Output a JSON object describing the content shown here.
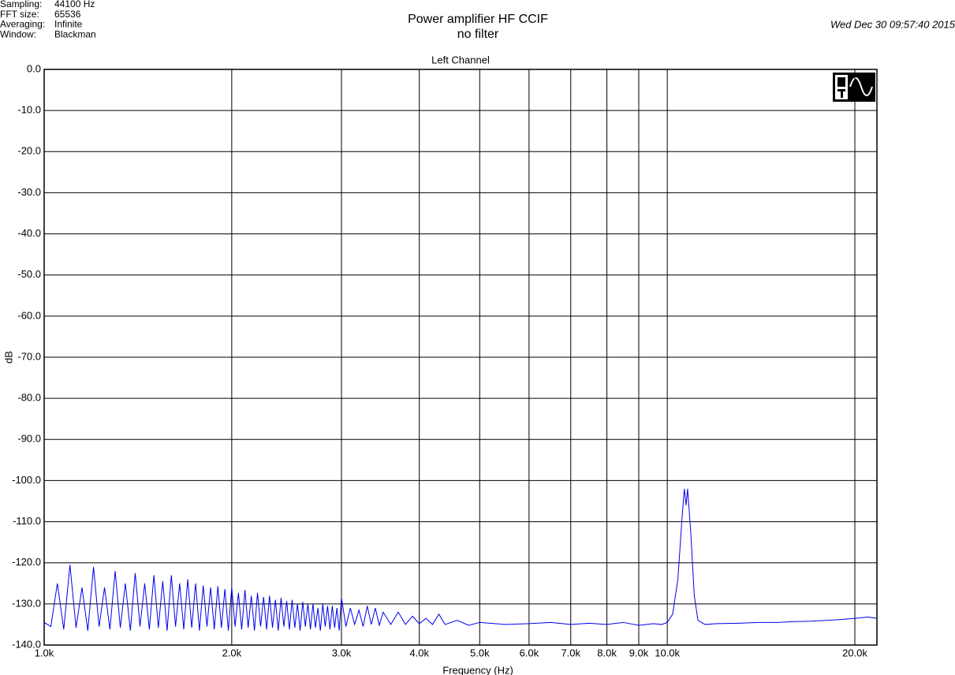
{
  "chart_data": {
    "type": "line",
    "title": "Power amplifier HF CCIF",
    "subtitle": "no filter",
    "plot_title": "Left Channel",
    "timestamp": "Wed Dec 30 09:57:40 2015",
    "info": [
      {
        "label": "Sampling:",
        "value": "44100 Hz"
      },
      {
        "label": "FFT size:",
        "value": "65536"
      },
      {
        "label": "Averaging:",
        "value": "Infinite"
      },
      {
        "label": "Window:",
        "value": "Blackman"
      }
    ],
    "x_label": "Frequency (Hz)",
    "y_label": "dB",
    "xscale": "log",
    "grid": true,
    "color": "#0000ee",
    "xlim": [
      1000,
      21700
    ],
    "ylim": [
      -140,
      0
    ],
    "xticks": [
      {
        "value": 1000,
        "label": "1.0k"
      },
      {
        "value": 2000,
        "label": "2.0k"
      },
      {
        "value": 3000,
        "label": "3.0k"
      },
      {
        "value": 4000,
        "label": "4.0k"
      },
      {
        "value": 5000,
        "label": "5.0k"
      },
      {
        "value": 6000,
        "label": "6.0k"
      },
      {
        "value": 7000,
        "label": "7.0k"
      },
      {
        "value": 8000,
        "label": "8.0k"
      },
      {
        "value": 9000,
        "label": "9.0k"
      },
      {
        "value": 10000,
        "label": "10.0k"
      },
      {
        "value": 20000,
        "label": "20.0k"
      }
    ],
    "yticks": [
      {
        "value": 0,
        "label": "0.0"
      },
      {
        "value": -10,
        "label": "-10.0"
      },
      {
        "value": -20,
        "label": "-20.0"
      },
      {
        "value": -30,
        "label": "-30.0"
      },
      {
        "value": -40,
        "label": "-40.0"
      },
      {
        "value": -50,
        "label": "-50.0"
      },
      {
        "value": -60,
        "label": "-60.0"
      },
      {
        "value": -70,
        "label": "-70.0"
      },
      {
        "value": -80,
        "label": "-80.0"
      },
      {
        "value": -90,
        "label": "-90.0"
      },
      {
        "value": -100,
        "label": "-100.0"
      },
      {
        "value": -110,
        "label": "-110.0"
      },
      {
        "value": -120,
        "label": "-120.0"
      },
      {
        "value": -130,
        "label": "-130.0"
      },
      {
        "value": -140,
        "label": "-140.0"
      }
    ],
    "x": [
      1000,
      1025,
      1050,
      1075,
      1100,
      1125,
      1150,
      1175,
      1200,
      1225,
      1250,
      1275,
      1300,
      1325,
      1350,
      1375,
      1400,
      1425,
      1450,
      1475,
      1500,
      1525,
      1550,
      1575,
      1600,
      1625,
      1650,
      1675,
      1700,
      1725,
      1750,
      1775,
      1800,
      1825,
      1850,
      1875,
      1900,
      1925,
      1950,
      1975,
      2000,
      2025,
      2050,
      2075,
      2100,
      2125,
      2150,
      2175,
      2200,
      2225,
      2250,
      2275,
      2300,
      2325,
      2350,
      2375,
      2400,
      2425,
      2450,
      2475,
      2500,
      2525,
      2550,
      2575,
      2600,
      2625,
      2650,
      2675,
      2700,
      2725,
      2750,
      2775,
      2800,
      2825,
      2850,
      2875,
      2900,
      2925,
      2950,
      2975,
      3000,
      3050,
      3100,
      3150,
      3200,
      3250,
      3300,
      3350,
      3400,
      3450,
      3500,
      3600,
      3700,
      3800,
      3900,
      4000,
      4100,
      4200,
      4300,
      4400,
      4600,
      4800,
      5000,
      5500,
      6000,
      6500,
      7000,
      7500,
      8000,
      8500,
      9000,
      9500,
      9800,
      10000,
      10200,
      10400,
      10550,
      10650,
      10720,
      10780,
      10900,
      11050,
      11200,
      11500,
      12000,
      13000,
      14000,
      15000,
      16000,
      17000,
      18000,
      19000,
      20000,
      21000,
      21700
    ],
    "values": [
      -134.5,
      -135.5,
      -125,
      -136.2,
      -120.5,
      -135.8,
      -126,
      -136.5,
      -121,
      -135.5,
      -126,
      -136.2,
      -122,
      -135.8,
      -125,
      -136.5,
      -122.5,
      -135.5,
      -125,
      -136.2,
      -123,
      -135.8,
      -124.5,
      -136.5,
      -123,
      -135.5,
      -125,
      -136.2,
      -124,
      -135.8,
      -125,
      -136.5,
      -125.5,
      -135.5,
      -126,
      -136.2,
      -125.7,
      -135.8,
      -126.4,
      -136.5,
      -126,
      -135.5,
      -127.3,
      -136.2,
      -126.6,
      -135.8,
      -128,
      -136.5,
      -127.3,
      -135.5,
      -128.3,
      -136.2,
      -128,
      -135.8,
      -129,
      -136.5,
      -128.5,
      -135.5,
      -129.3,
      -136.2,
      -129,
      -135.8,
      -130,
      -136.5,
      -129.5,
      -135.5,
      -130,
      -136.2,
      -130,
      -135.8,
      -131,
      -136.5,
      -130,
      -135.5,
      -130.5,
      -136.2,
      -130.5,
      -135.8,
      -131,
      -136.5,
      -128.5,
      -135.5,
      -131,
      -135,
      -131.5,
      -135.5,
      -130.5,
      -135,
      -131,
      -135.2,
      -132,
      -135,
      -132,
      -135,
      -133,
      -134.8,
      -133.5,
      -135,
      -132.5,
      -135,
      -134,
      -135.2,
      -134.5,
      -135,
      -134.8,
      -134.5,
      -135,
      -134.7,
      -135,
      -134.5,
      -135.2,
      -134.8,
      -135,
      -134.5,
      -132.5,
      -124,
      -110,
      -102,
      -106,
      -102,
      -112,
      -128,
      -134,
      -135,
      -134.8,
      -134.7,
      -134.5,
      -134.5,
      -134.3,
      -134.2,
      -134,
      -133.8,
      -133.5,
      -133.2,
      -133.5
    ]
  }
}
